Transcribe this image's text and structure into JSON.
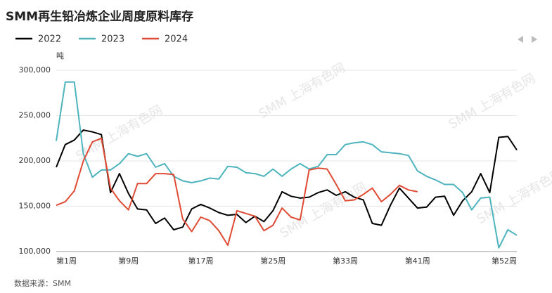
{
  "chart_data": {
    "type": "line",
    "title": "SMM再生铅冶炼企业周度原料库存",
    "y_unit": "吨",
    "source": "数据来源：SMM",
    "watermark": "SMM 上海有色网",
    "categories": [
      "第1周",
      null,
      null,
      null,
      null,
      null,
      null,
      null,
      "第9周",
      null,
      null,
      null,
      null,
      null,
      null,
      null,
      "第17周",
      null,
      null,
      null,
      null,
      null,
      null,
      null,
      "第25周",
      null,
      null,
      null,
      null,
      null,
      null,
      null,
      "第33周",
      null,
      null,
      null,
      null,
      null,
      null,
      null,
      "第41周",
      null,
      null,
      null,
      null,
      null,
      null,
      null,
      null,
      null,
      null,
      "第52周"
    ],
    "series": [
      {
        "name": "2022",
        "color": "#000000",
        "values": [
          193000,
          218000,
          223000,
          234000,
          232000,
          229000,
          165000,
          186000,
          164000,
          147000,
          146000,
          131000,
          137000,
          124000,
          127000,
          147000,
          152000,
          148000,
          143000,
          140000,
          141000,
          132000,
          139000,
          133000,
          145000,
          166000,
          161000,
          159000,
          160000,
          165000,
          168000,
          162000,
          166000,
          160000,
          157000,
          131000,
          129000,
          151000,
          170000,
          159000,
          148000,
          149000,
          160000,
          161000,
          140000,
          156000,
          166000,
          186000,
          165000,
          226000,
          227000,
          212000
        ]
      },
      {
        "name": "2023",
        "color": "#4db3bd",
        "values": [
          222000,
          287000,
          287000,
          208000,
          182000,
          190000,
          190000,
          197000,
          208000,
          205000,
          208000,
          193000,
          197000,
          183000,
          178000,
          176000,
          178000,
          181000,
          180000,
          194000,
          193000,
          187000,
          186000,
          183000,
          191000,
          183000,
          191000,
          197000,
          191000,
          194000,
          207000,
          207000,
          218000,
          220000,
          221000,
          218000,
          210000,
          209000,
          208000,
          206000,
          189000,
          183000,
          179000,
          174000,
          174000,
          165000,
          146000,
          159000,
          160000,
          104000,
          124000,
          118000
        ]
      },
      {
        "name": "2024",
        "color": "#e04b35",
        "values": [
          151000,
          155000,
          167000,
          200000,
          221000,
          225000,
          170000,
          156000,
          146000,
          175000,
          175000,
          186000,
          186000,
          185000,
          136000,
          122000,
          138000,
          134000,
          123000,
          107000,
          145000,
          142000,
          139000,
          123000,
          129000,
          148000,
          138000,
          135000,
          190000,
          192000,
          191000,
          174000,
          156000,
          157000,
          163000,
          170000,
          155000,
          163000,
          173000,
          168000,
          166000,
          null,
          null,
          null,
          null,
          null,
          null,
          null,
          null,
          null,
          null,
          null
        ]
      }
    ],
    "ylim": [
      100000,
      300000
    ],
    "yticks": [
      {
        "value": 100000,
        "label": "100,000"
      },
      {
        "value": 150000,
        "label": "150,000"
      },
      {
        "value": 200000,
        "label": "200,000"
      },
      {
        "value": 250000,
        "label": "250,000"
      },
      {
        "value": 300000,
        "label": "300,000"
      }
    ],
    "grid": true
  }
}
